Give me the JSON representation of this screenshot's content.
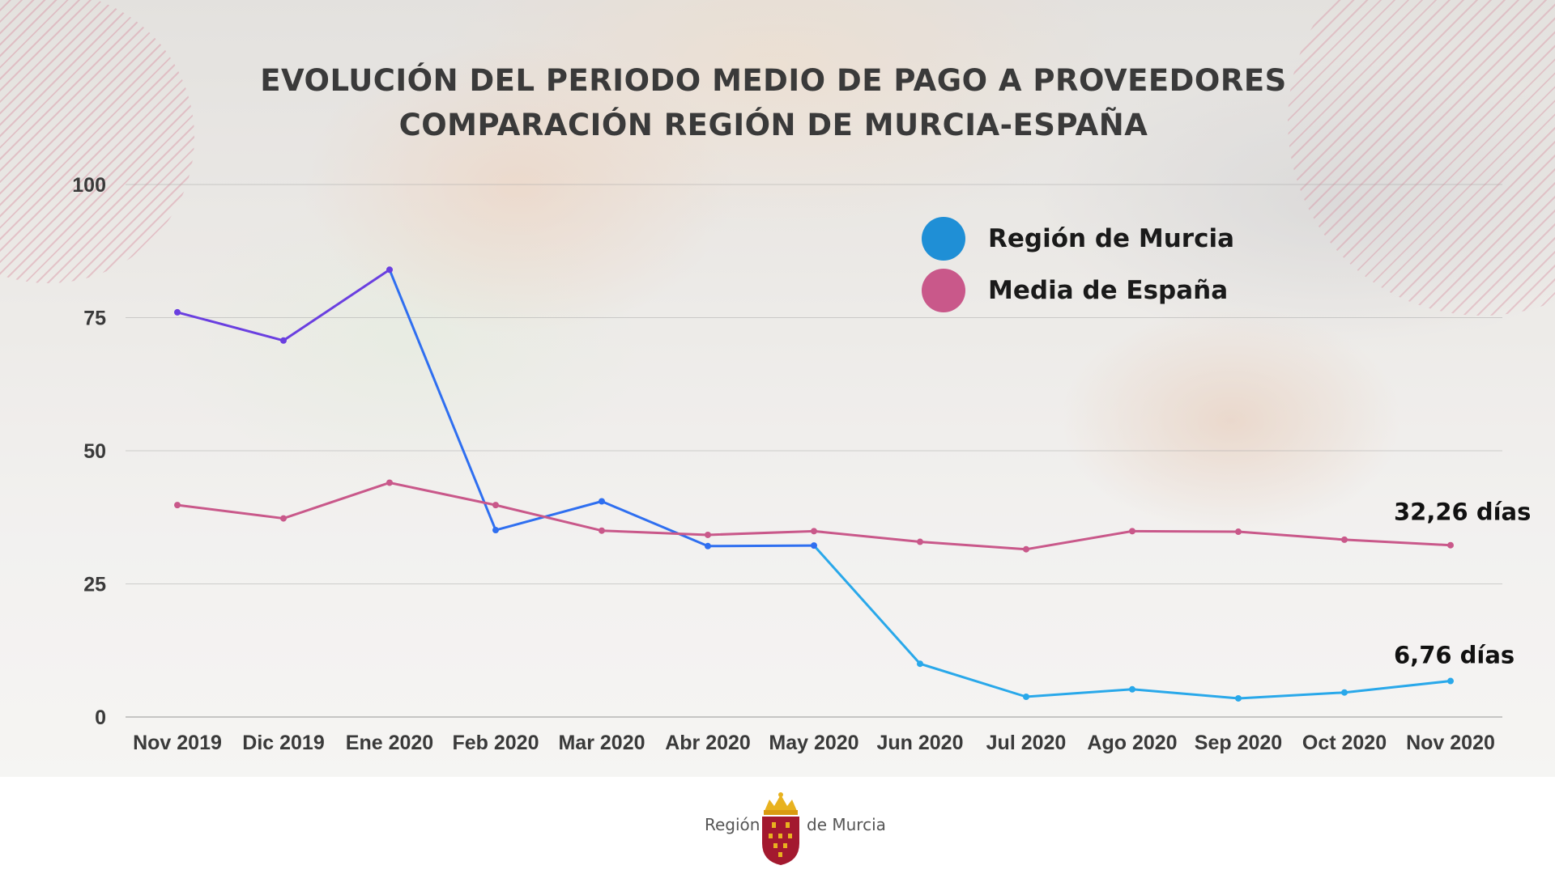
{
  "title": {
    "line1": "EVOLUCIÓN DEL PERIODO MEDIO DE PAGO A PROVEEDORES",
    "line2": "COMPARACIÓN REGIÓN DE MURCIA-ESPAÑA"
  },
  "legend": {
    "murcia_label": "Región de Murcia",
    "espana_label": "Media de España"
  },
  "colors": {
    "murcia_early": "#6a3fe0",
    "murcia": "#2f6ff0",
    "murcia_late": "#29a8ea",
    "murcia_legend": "#1f8fd6",
    "espana": "#c9588a",
    "title": "#3a3a3a"
  },
  "chart_data": {
    "type": "line",
    "categories": [
      "Nov 2019",
      "Dic 2019",
      "Ene 2020",
      "Feb 2020",
      "Mar 2020",
      "Abr 2020",
      "May 2020",
      "Jun 2020",
      "Jul 2020",
      "Ago 2020",
      "Sep 2020",
      "Oct 2020",
      "Nov 2020"
    ],
    "series": [
      {
        "name": "Región de Murcia",
        "values": [
          76.0,
          70.7,
          84.0,
          35.1,
          40.5,
          32.1,
          32.2,
          10.0,
          3.8,
          5.2,
          3.5,
          4.6,
          6.76
        ]
      },
      {
        "name": "Media de España",
        "values": [
          39.8,
          37.3,
          44.0,
          39.8,
          35.0,
          34.2,
          34.9,
          32.9,
          31.5,
          34.9,
          34.8,
          33.3,
          32.26
        ]
      }
    ],
    "ylim": [
      0,
      100
    ],
    "yticks": [
      0,
      25,
      50,
      75,
      100
    ],
    "grid": true,
    "legend_position": "top-right",
    "annotations": [
      {
        "series": "Media de España",
        "text": "32,26 días"
      },
      {
        "series": "Región de Murcia",
        "text": "6,76 días"
      }
    ]
  },
  "footer": {
    "left_text": "Región",
    "right_text": "de Murcia",
    "emblem": "region-de-murcia-coat-of-arms"
  }
}
